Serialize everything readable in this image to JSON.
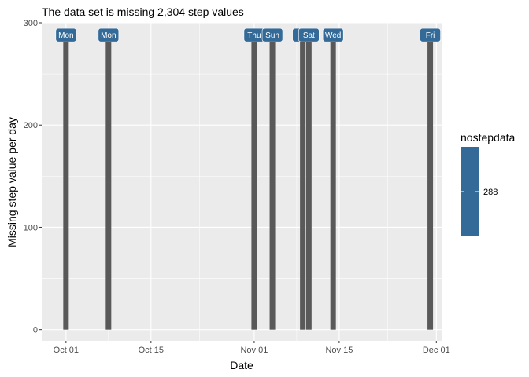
{
  "chart_data": {
    "type": "bar",
    "title": "The data set is missing  2,304 step values",
    "xlabel": "Date",
    "ylabel": "Missing step value per day",
    "x_axis": {
      "range": [
        "2012-09-27",
        "2012-12-02"
      ],
      "ticks": [
        {
          "date": "2012-10-01",
          "label": "Oct 01"
        },
        {
          "date": "2012-10-15",
          "label": "Oct 15"
        },
        {
          "date": "2012-11-01",
          "label": "Nov 01"
        },
        {
          "date": "2012-11-15",
          "label": "Nov 15"
        },
        {
          "date": "2012-12-01",
          "label": "Dec 01"
        }
      ]
    },
    "y_axis": {
      "range": [
        -11,
        300
      ],
      "ticks": [
        {
          "value": 0,
          "label": "0"
        },
        {
          "value": 100,
          "label": "100"
        },
        {
          "value": 200,
          "label": "200"
        },
        {
          "value": 300,
          "label": "300"
        }
      ]
    },
    "grid": true,
    "bars": [
      {
        "date": "2012-10-01",
        "value": 288,
        "label": "Mon"
      },
      {
        "date": "2012-10-08",
        "value": 288,
        "label": "Mon"
      },
      {
        "date": "2012-11-01",
        "value": 288,
        "label": "Thu"
      },
      {
        "date": "2012-11-04",
        "value": 288,
        "label": "Sun"
      },
      {
        "date": "2012-11-09",
        "value": 288,
        "label": "Fri"
      },
      {
        "date": "2012-11-10",
        "value": 288,
        "label": "Sat"
      },
      {
        "date": "2012-11-14",
        "value": 288,
        "label": "Wed"
      },
      {
        "date": "2012-11-30",
        "value": 288,
        "label": "Fri"
      }
    ],
    "legend": {
      "title": "nostepdata",
      "position": "right",
      "entries": [
        {
          "value": 288,
          "label": "288"
        }
      ]
    },
    "colors": {
      "panel": "#EBEBEB",
      "grid": "#FFFFFF",
      "bar": "#595959",
      "label_fill": "#336A98",
      "legend_fill": "#336A98"
    }
  }
}
